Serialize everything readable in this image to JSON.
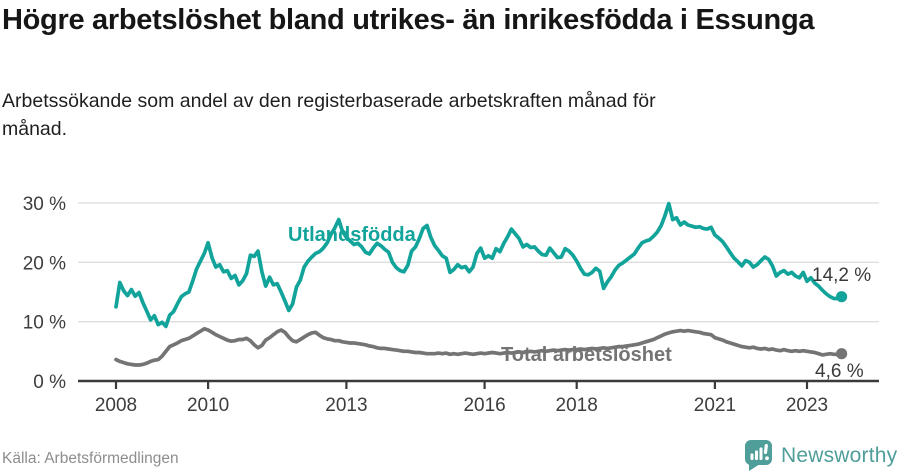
{
  "header": {
    "title": "Högre arbetslöshet bland utrikes- än inrikesfödda i Essunga",
    "subtitle": "Arbetssökande som andel av den registerbaserade arbetskraften månad för månad."
  },
  "footer": {
    "source": "Källa: Arbetsförmedlingen",
    "brand": "Newsworthy",
    "brand_icon": "newsworthy-speech-bubble-bar-chart-icon"
  },
  "colors": {
    "accent_teal": "#12a39a",
    "series_gray": "#747474",
    "brand_teal": "#4f9e99",
    "grid": "#dedede",
    "axis": "#3a3a3a"
  },
  "chart_data": {
    "type": "line",
    "title": "Högre arbetslöshet bland utrikes- än inrikesfödda i Essunga",
    "ylabel": "Arbetssökande som andel av den registerbaserade arbetskraften",
    "x_unit": "month",
    "x_start": "2008-01",
    "x_end": "2023-10",
    "grid": true,
    "legend_position": "inline-labels",
    "ylim": [
      0,
      30
    ],
    "y_ticks": [
      0,
      10,
      20,
      30
    ],
    "y_tick_suffix": " %",
    "x_tick_years": [
      2008,
      2010,
      2013,
      2016,
      2018,
      2021,
      2023
    ],
    "x_tick_labels": [
      "2008",
      "2010",
      "2013",
      "2016",
      "2018",
      "2021",
      "2023"
    ],
    "series": [
      {
        "name": "Utlandsfödda",
        "color": "#12a39a",
        "end_label": "14,2 %",
        "end_value": 14.2,
        "values": [
          12.5,
          16.6,
          15.2,
          14.4,
          15.4,
          14.3,
          14.9,
          13.2,
          11.8,
          10.3,
          11.0,
          9.5,
          9.9,
          9.2,
          11.1,
          11.7,
          13.0,
          14.2,
          14.7,
          15.0,
          16.9,
          18.9,
          20.2,
          21.5,
          23.3,
          20.8,
          19.2,
          19.6,
          18.4,
          18.6,
          17.3,
          17.8,
          16.2,
          16.9,
          18.1,
          21.2,
          21.0,
          21.9,
          18.4,
          16.0,
          17.5,
          16.2,
          16.4,
          15.0,
          13.5,
          11.9,
          13.0,
          15.8,
          17.0,
          19.2,
          20.2,
          20.9,
          21.5,
          21.8,
          22.4,
          23.3,
          24.7,
          25.8,
          27.2,
          25.2,
          24.2,
          23.6,
          23.0,
          23.2,
          22.6,
          21.7,
          21.4,
          22.4,
          23.2,
          22.8,
          22.2,
          21.7,
          20.0,
          19.1,
          18.6,
          18.4,
          19.5,
          21.9,
          22.6,
          24.0,
          25.7,
          26.2,
          24.2,
          22.8,
          22.0,
          21.1,
          20.7,
          18.3,
          18.8,
          19.6,
          19.1,
          19.3,
          18.4,
          19.2,
          21.5,
          22.4,
          20.7,
          21.1,
          20.7,
          22.3,
          21.8,
          23.2,
          24.3,
          25.6,
          24.8,
          24.0,
          22.6,
          23.0,
          22.5,
          22.6,
          21.9,
          21.3,
          21.2,
          22.4,
          21.6,
          20.8,
          20.9,
          22.3,
          21.9,
          21.2,
          20.2,
          19.0,
          18.0,
          17.9,
          18.3,
          19.0,
          18.5,
          15.6,
          16.7,
          17.6,
          18.7,
          19.5,
          19.9,
          20.4,
          20.9,
          21.4,
          22.4,
          23.3,
          23.6,
          23.8,
          24.4,
          25.1,
          26.2,
          27.9,
          29.9,
          27.2,
          27.5,
          26.3,
          26.8,
          26.3,
          26.1,
          25.9,
          26.0,
          25.7,
          25.6,
          25.9,
          24.6,
          24.1,
          23.5,
          22.6,
          21.6,
          20.7,
          20.1,
          19.4,
          20.3,
          20.0,
          19.2,
          19.6,
          20.3,
          20.9,
          20.5,
          19.4,
          17.7,
          18.3,
          18.6,
          18.0,
          18.3,
          17.7,
          17.4,
          18.3,
          16.8,
          17.4,
          16.5,
          16.0,
          15.3,
          14.7,
          14.2,
          13.9,
          13.9,
          14.2
        ]
      },
      {
        "name": "Total arbetslöshet",
        "color": "#747474",
        "end_label": "4,6 %",
        "end_value": 4.6,
        "values": [
          3.6,
          3.3,
          3.1,
          2.9,
          2.8,
          2.7,
          2.7,
          2.8,
          3.0,
          3.3,
          3.5,
          3.6,
          4.2,
          5.0,
          5.8,
          6.1,
          6.4,
          6.8,
          7.0,
          7.2,
          7.6,
          8.0,
          8.4,
          8.8,
          8.6,
          8.2,
          7.8,
          7.5,
          7.2,
          6.9,
          6.7,
          6.8,
          7.0,
          7.0,
          7.2,
          6.8,
          6.1,
          5.6,
          6.0,
          6.9,
          7.3,
          7.8,
          8.3,
          8.6,
          8.2,
          7.4,
          6.8,
          6.6,
          7.0,
          7.4,
          7.8,
          8.1,
          8.2,
          7.7,
          7.3,
          7.1,
          7.0,
          6.8,
          6.8,
          6.6,
          6.5,
          6.4,
          6.4,
          6.3,
          6.2,
          6.1,
          5.9,
          5.8,
          5.6,
          5.5,
          5.5,
          5.4,
          5.3,
          5.2,
          5.1,
          5.0,
          5.0,
          4.9,
          4.8,
          4.8,
          4.7,
          4.6,
          4.6,
          4.6,
          4.7,
          4.6,
          4.7,
          4.5,
          4.6,
          4.5,
          4.6,
          4.7,
          4.6,
          4.5,
          4.6,
          4.7,
          4.6,
          4.7,
          4.8,
          4.7,
          4.6,
          4.7,
          4.8,
          4.7,
          4.8,
          4.9,
          4.8,
          4.9,
          5.0,
          4.9,
          5.0,
          5.1,
          5.0,
          5.1,
          5.2,
          5.1,
          5.2,
          5.3,
          5.2,
          5.3,
          5.3,
          5.4,
          5.3,
          5.4,
          5.5,
          5.4,
          5.5,
          5.6,
          5.5,
          5.6,
          5.7,
          5.8,
          5.8,
          5.9,
          6.0,
          6.1,
          6.2,
          6.4,
          6.6,
          6.8,
          7.0,
          7.3,
          7.6,
          7.9,
          8.1,
          8.3,
          8.4,
          8.5,
          8.4,
          8.5,
          8.4,
          8.3,
          8.2,
          8.0,
          7.9,
          7.8,
          7.3,
          7.1,
          6.9,
          6.6,
          6.4,
          6.2,
          6.0,
          5.8,
          5.7,
          5.6,
          5.7,
          5.5,
          5.4,
          5.5,
          5.3,
          5.4,
          5.2,
          5.1,
          5.3,
          5.1,
          5.0,
          5.1,
          5.0,
          5.1,
          5.0,
          4.9,
          4.8,
          4.6,
          4.4,
          4.5,
          4.6,
          4.5,
          4.5,
          4.6
        ]
      }
    ]
  }
}
